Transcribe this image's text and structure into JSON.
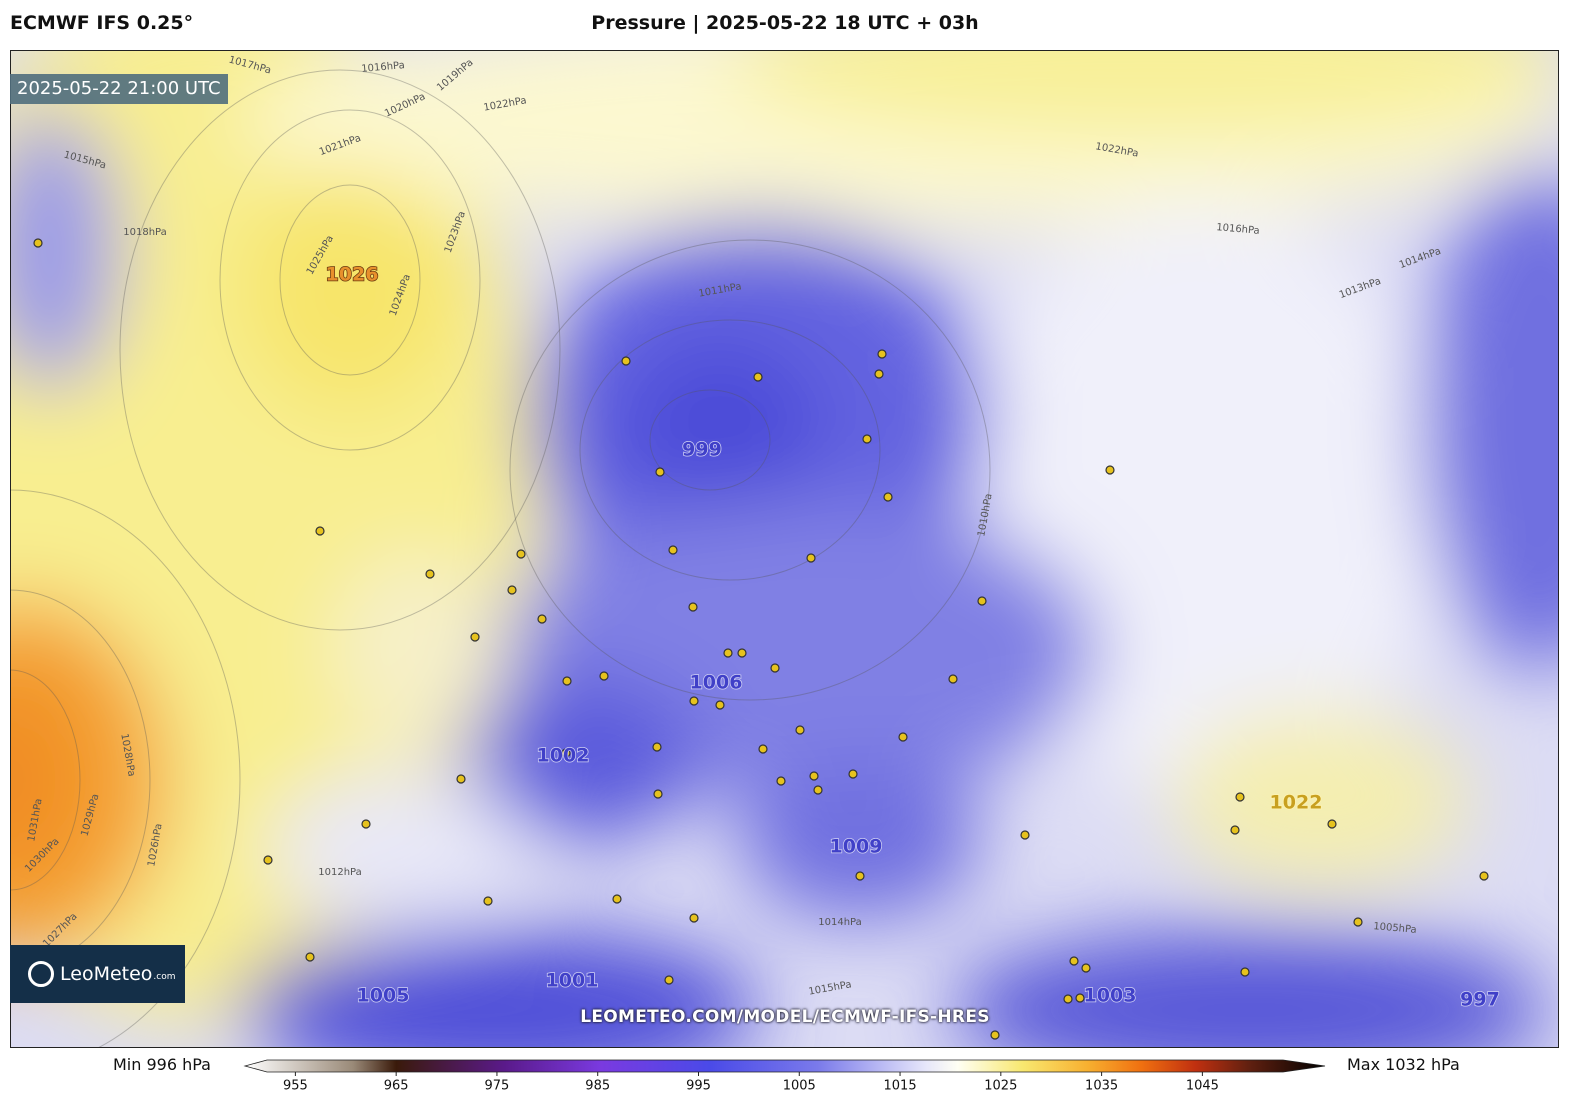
{
  "header": {
    "model": "ECMWF IFS 0.25°",
    "title": "Pressure | 2025-05-22 18 UTC + 03h"
  },
  "map": {
    "valid_time": "2025-05-22 21:00 UTC",
    "logo": "LeoMeteo",
    "logo_suffix": ".com",
    "watermark": "LEOMETEO.COM/MODEL/ECMWF-IFS-HRES",
    "pressure_centers": [
      "1026",
      "999",
      "1006",
      "1002",
      "1009",
      "1022",
      "1001",
      "1005",
      "1003",
      "997"
    ],
    "isobar_labels": [
      "1017hPa",
      "1016hPa",
      "1019hPa",
      "1020hPa",
      "1022hPa",
      "1021hPa",
      "1015hPa",
      "1018hPa",
      "1025hPa",
      "1024hPa",
      "1023hPa",
      "1016hPa",
      "1014hPa",
      "1013hPa",
      "1011hPa",
      "1010hPa",
      "1012hPa",
      "1014hPa",
      "1015hPa",
      "1005hPa",
      "1031hPa",
      "1030hPa",
      "1029hPa",
      "1028hPa",
      "1026hPa",
      "1027hPa",
      "1022hPa"
    ]
  },
  "legend": {
    "min": "Min 996 hPa",
    "max": "Max 1032 hPa",
    "lim": [
      950,
      1053
    ],
    "ticks": [
      955,
      965,
      975,
      985,
      995,
      1005,
      1015,
      1025,
      1035,
      1045
    ]
  }
}
